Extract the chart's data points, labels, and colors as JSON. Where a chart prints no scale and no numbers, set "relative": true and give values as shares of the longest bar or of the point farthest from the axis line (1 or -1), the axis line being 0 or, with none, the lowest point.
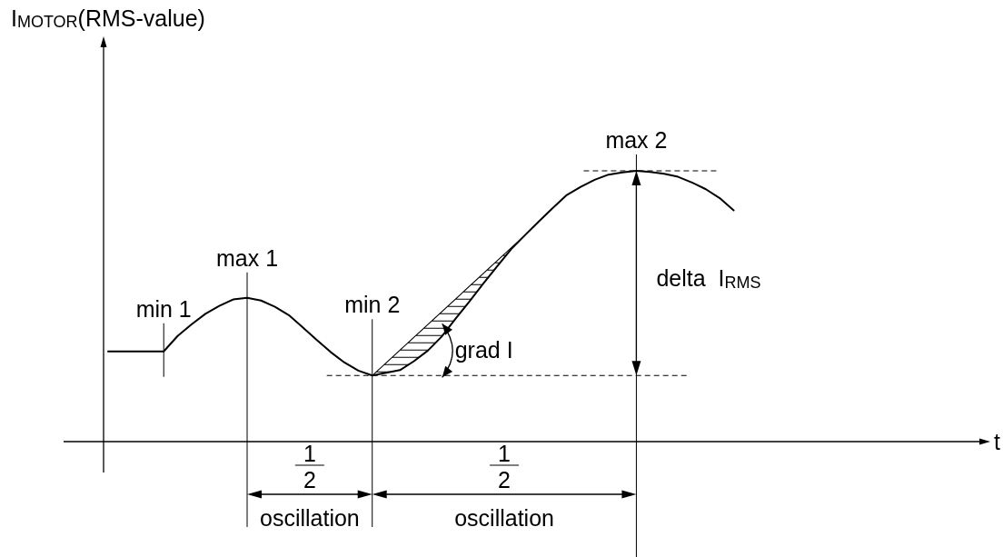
{
  "chart_data": {
    "type": "line",
    "relative": true,
    "categories": [
      null,
      null,
      null,
      null,
      null,
      null,
      null,
      null,
      null,
      null,
      null,
      null,
      null,
      null,
      null,
      null,
      null,
      null,
      null,
      null,
      null,
      null,
      null,
      null,
      null,
      null,
      null,
      null,
      null,
      null,
      null,
      null,
      null,
      null,
      null,
      null,
      null,
      null,
      null,
      null,
      null,
      null,
      null,
      null,
      null,
      null
    ],
    "color": "#000000",
    "values": [
      0.333,
      0.333,
      0.333,
      0.333,
      0.333,
      0.39,
      0.433,
      0.472,
      0.501,
      0.525,
      0.531,
      0.521,
      0.498,
      0.467,
      0.422,
      0.376,
      0.331,
      0.292,
      0.262,
      0.244,
      0.254,
      0.264,
      0.297,
      0.336,
      0.388,
      0.454,
      0.518,
      0.584,
      0.648,
      0.711,
      0.763,
      0.814,
      0.863,
      0.911,
      0.941,
      0.967,
      0.986,
      0.994,
      1,
      0.996,
      0.989,
      0.978,
      0.957,
      0.932,
      0.899,
      0.854
    ],
    "ref_lines": [
      {
        "axis": "y",
        "value": 0.244,
        "line_style": "dashed",
        "color": "#000000"
      },
      {
        "axis": "y",
        "value": 1,
        "line_style": "dashed",
        "color": "#000000"
      }
    ],
    "annotations": [
      "I$_{MOTOR}$(RMS-value)",
      {
        "text": "min 1",
        "y": 0.333
      },
      {
        "text": "max 1",
        "y": 0.531
      },
      {
        "text": "min 2",
        "y": 0.244
      },
      {
        "text": "max 2",
        "y": 1
      },
      "t",
      "delta  I$_{RMS}$",
      "grad I",
      "1",
      "2",
      "oscillation",
      "1",
      "2",
      "oscillation"
    ]
  }
}
